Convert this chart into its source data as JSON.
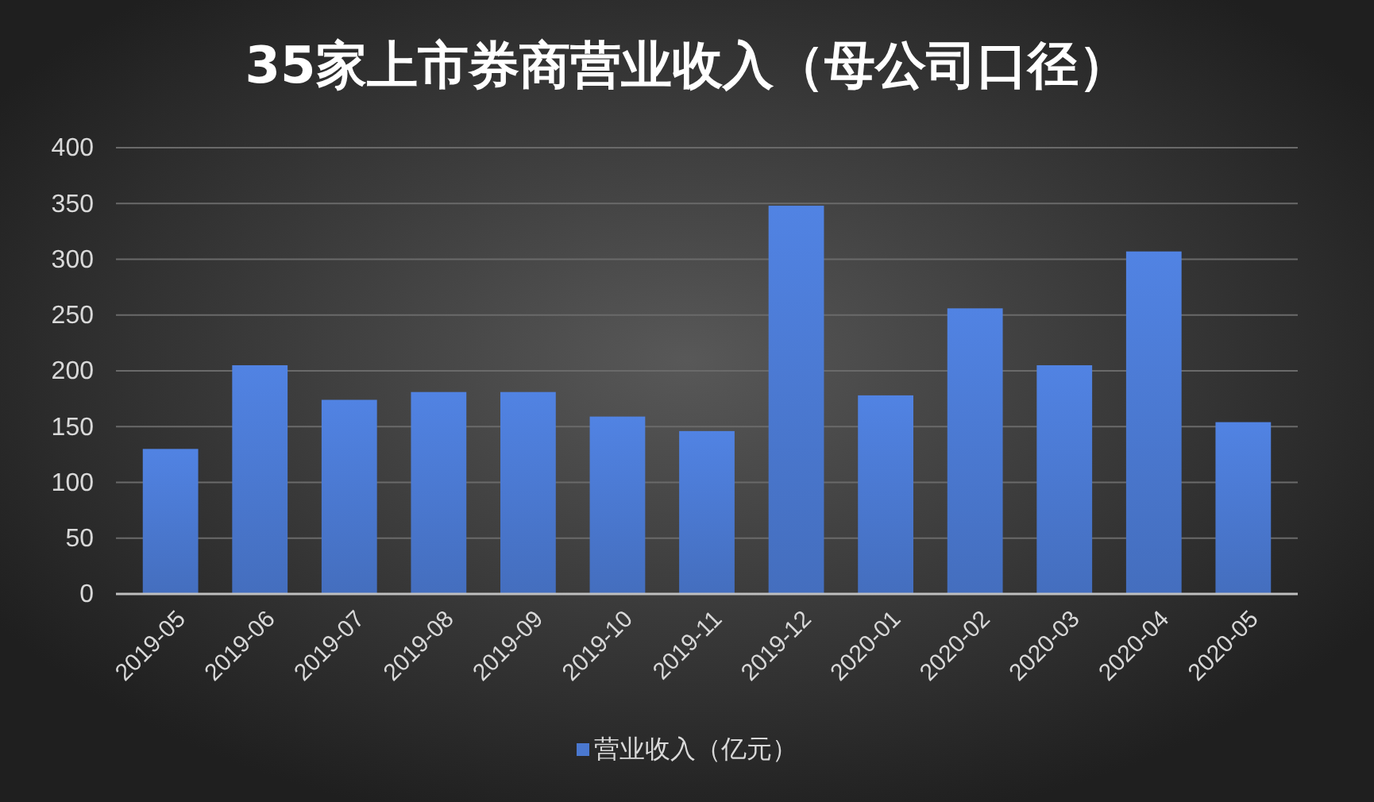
{
  "chart_data": {
    "type": "bar",
    "title": "35家上市券商营业收入（母公司口径）",
    "categories": [
      "2019-05",
      "2019-06",
      "2019-07",
      "2019-08",
      "2019-09",
      "2019-10",
      "2019-11",
      "2019-12",
      "2020-01",
      "2020-02",
      "2020-03",
      "2020-04",
      "2020-05"
    ],
    "series": [
      {
        "name": "营业收入（亿元）",
        "color": "#4a78d0",
        "values": [
          130,
          205,
          174,
          181,
          181,
          159,
          146,
          348,
          178,
          256,
          205,
          307,
          154
        ]
      }
    ],
    "ylim": [
      0,
      400
    ],
    "yticks": [
      0,
      50,
      100,
      150,
      200,
      250,
      300,
      350,
      400
    ],
    "grid": "y",
    "legend": "bottom"
  }
}
